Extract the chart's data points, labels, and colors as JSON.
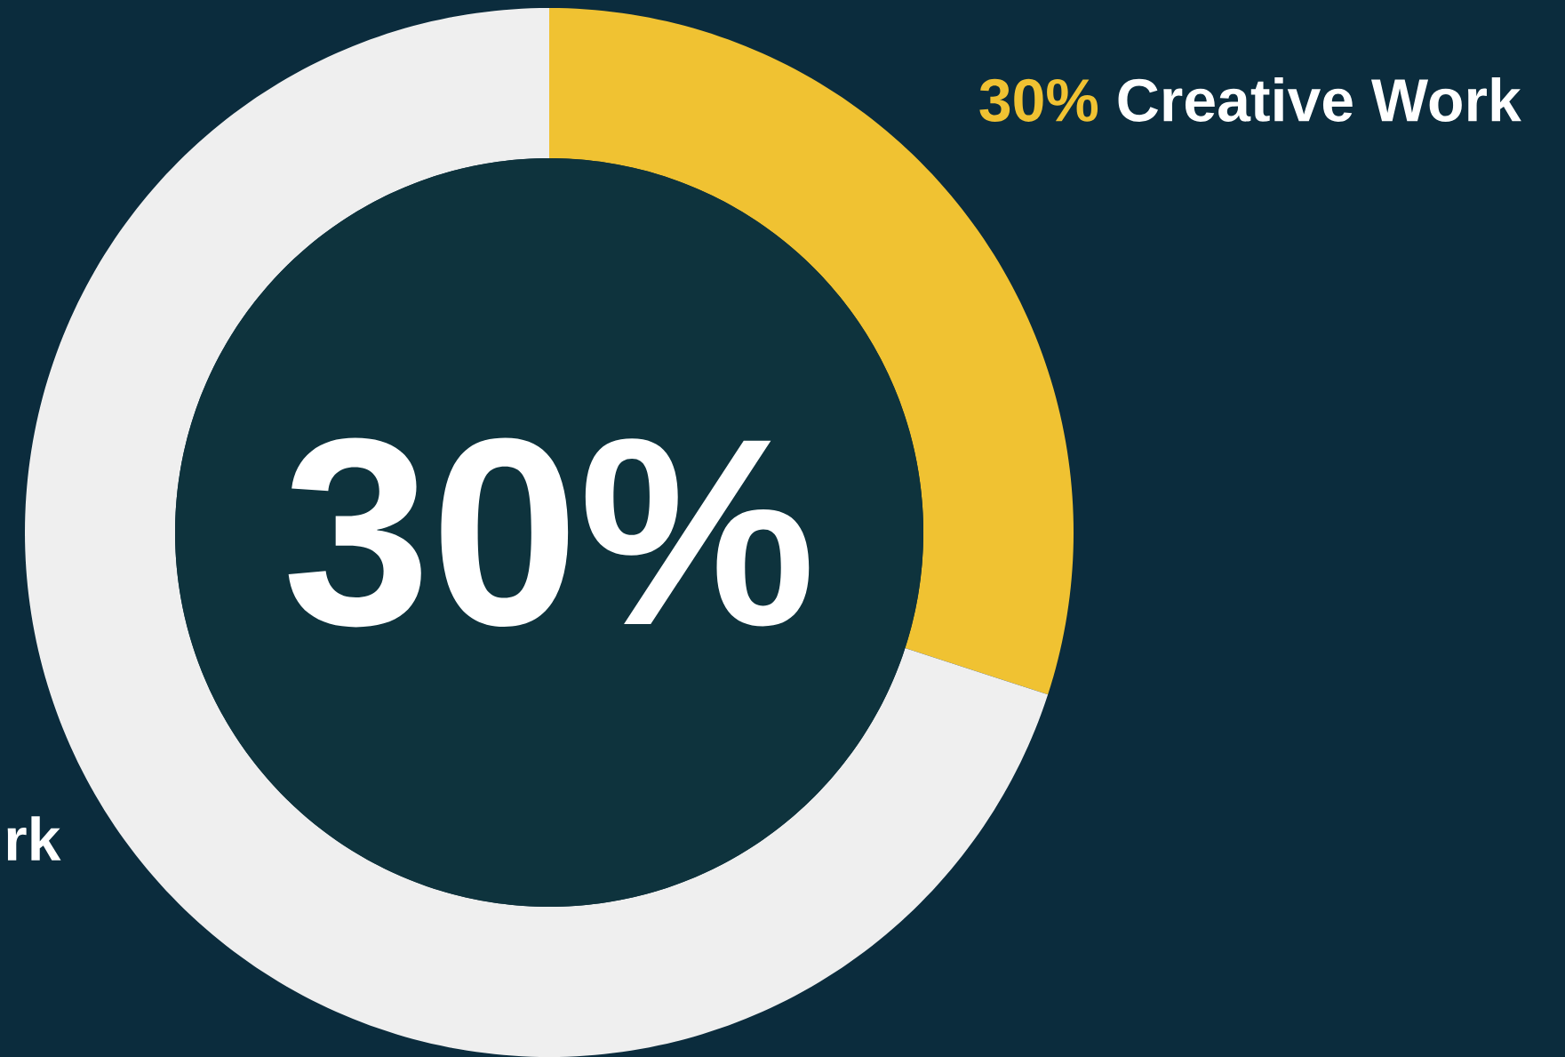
{
  "chart_data": {
    "type": "donut",
    "categories": [
      "Creative Work",
      "rk"
    ],
    "values": [
      30,
      70
    ],
    "colors": [
      "#f0c232",
      "#efefef"
    ],
    "value_labels": [
      "30%",
      null
    ],
    "annotations": [
      "30%"
    ]
  }
}
